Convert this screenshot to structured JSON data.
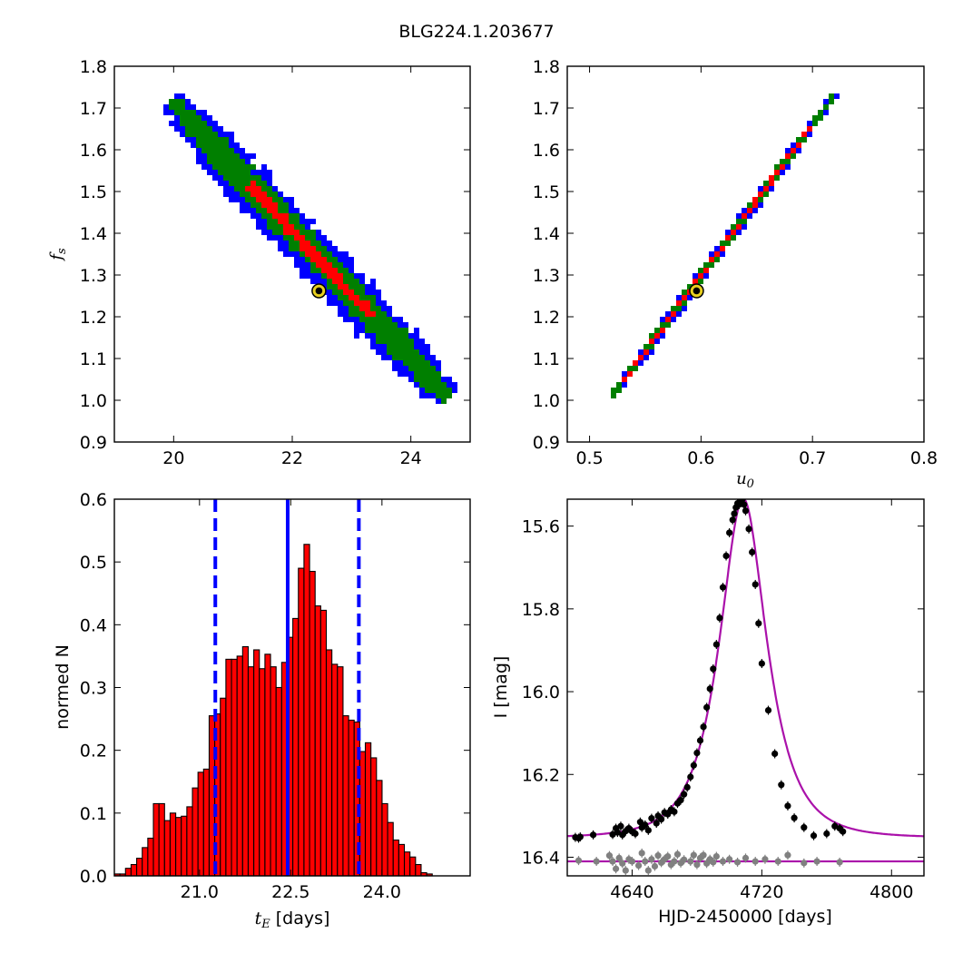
{
  "figure": {
    "title": "BLG224.1.203677"
  },
  "chart_data": [
    {
      "id": "ul",
      "type": "heatmap",
      "title": "",
      "xlabel": "",
      "ylabel": "f_s",
      "ylabel_main": "f",
      "ylabel_sub": "s",
      "xlim": [
        19,
        25
      ],
      "ylim": [
        0.9,
        1.8
      ],
      "xticks": [
        20,
        22,
        24
      ],
      "xtick_labels": [
        "20",
        "22",
        "24"
      ],
      "yticks": [
        0.9,
        1.0,
        1.1,
        1.2,
        1.3,
        1.4,
        1.5,
        1.6,
        1.7,
        1.8
      ],
      "ytick_labels": [
        "0.9",
        "1.0",
        "1.1",
        "1.2",
        "1.3",
        "1.4",
        "1.5",
        "1.6",
        "1.7",
        "1.8"
      ],
      "band": {
        "start": [
          20.0,
          1.71
        ],
        "end": [
          24.6,
          1.01
        ]
      },
      "regions": [
        {
          "level": "3-sigma",
          "color": "#0000ff",
          "half_width": 0.5
        },
        {
          "level": "2-sigma",
          "color": "#007f00",
          "half_width": 0.3
        },
        {
          "level": "1-sigma",
          "color": "#ff0000",
          "half_width": 0.12,
          "from": 0.28,
          "to": 0.73
        }
      ],
      "best_fit": {
        "x": 22.45,
        "y": 1.262
      },
      "grid": false
    },
    {
      "id": "ur",
      "type": "heatmap",
      "title": "",
      "xlabel": "u_0",
      "xlabel_main": "u",
      "xlabel_sub": "0",
      "ylabel": "",
      "xlim": [
        0.48,
        0.8
      ],
      "ylim": [
        0.9,
        1.8
      ],
      "xticks": [
        0.5,
        0.6,
        0.7,
        0.8
      ],
      "xtick_labels": [
        "0.5",
        "0.6",
        "0.7",
        "0.8"
      ],
      "yticks": [
        0.9,
        1.0,
        1.1,
        1.2,
        1.3,
        1.4,
        1.5,
        1.6,
        1.7,
        1.8
      ],
      "ytick_labels": [
        "0.9",
        "1.0",
        "1.1",
        "1.2",
        "1.3",
        "1.4",
        "1.5",
        "1.6",
        "1.7",
        "1.8"
      ],
      "band": {
        "start": [
          0.519,
          1.005
        ],
        "end": [
          0.718,
          1.725
        ]
      },
      "regions": [
        {
          "level": "3-sigma",
          "color": "#0000ff",
          "half_width": 0.006
        },
        {
          "level": "2-sigma",
          "color": "#007f00",
          "half_width": 0.004
        },
        {
          "level": "1-sigma",
          "color": "#ff0000",
          "half_width": 0.0018,
          "from": 0.05,
          "to": 0.9
        }
      ],
      "best_fit": {
        "x": 0.596,
        "y": 1.262
      },
      "grid": false
    },
    {
      "id": "ll",
      "type": "bar",
      "title": "",
      "xlabel": "t_E [days]",
      "xlabel_main": "t",
      "xlabel_sub": "E",
      "xlabel_rest": " [days]",
      "ylabel": "normed N",
      "xlim": [
        19.6,
        25.45
      ],
      "ylim": [
        0.0,
        0.6
      ],
      "xticks": [
        21.0,
        22.5,
        24.0
      ],
      "xtick_labels": [
        "21.0",
        "22.5",
        "24.0"
      ],
      "yticks": [
        0.0,
        0.1,
        0.2,
        0.3,
        0.4,
        0.5,
        0.6
      ],
      "ytick_labels": [
        "0.0",
        "0.1",
        "0.2",
        "0.3",
        "0.4",
        "0.5",
        "0.6"
      ],
      "bin_start": 19.6,
      "bin_width": 0.0917,
      "values": [
        0.003,
        0.003,
        0.012,
        0.018,
        0.028,
        0.045,
        0.06,
        0.115,
        0.115,
        0.088,
        0.1,
        0.093,
        0.095,
        0.11,
        0.14,
        0.165,
        0.17,
        0.255,
        0.258,
        0.283,
        0.345,
        0.345,
        0.35,
        0.365,
        0.333,
        0.36,
        0.33,
        0.353,
        0.333,
        0.3,
        0.34,
        0.38,
        0.41,
        0.49,
        0.528,
        0.485,
        0.43,
        0.423,
        0.36,
        0.337,
        0.333,
        0.255,
        0.248,
        0.245,
        0.198,
        0.212,
        0.188,
        0.152,
        0.115,
        0.085,
        0.057,
        0.05,
        0.038,
        0.03,
        0.018,
        0.005,
        0.003
      ],
      "bar_color": "#ff0000",
      "vlines": [
        {
          "x": 22.45,
          "style": "solid",
          "color": "#0000ff"
        },
        {
          "x": 21.26,
          "style": "dashed",
          "color": "#0000ff"
        },
        {
          "x": 23.62,
          "style": "dashed",
          "color": "#0000ff"
        }
      ],
      "grid": false
    },
    {
      "id": "lr",
      "type": "scatter",
      "title": "",
      "xlabel": "HJD-2450000 [days]",
      "ylabel": "I [mag]",
      "xlim": [
        4600,
        4820
      ],
      "ylim": [
        16.445,
        15.535
      ],
      "y_inverted": true,
      "xticks": [
        4640,
        4720,
        4800
      ],
      "xtick_labels": [
        "4640",
        "4720",
        "4800"
      ],
      "yticks": [
        15.6,
        15.8,
        16.0,
        16.2,
        16.4
      ],
      "ytick_labels": [
        "15.6",
        "15.8",
        "16.0",
        "16.2",
        "16.4"
      ],
      "model": {
        "name": "",
        "color": "#aa11aa",
        "t0": 4708.5,
        "tE": 22.45,
        "u0": 0.596,
        "fs": 1.262,
        "I_base": 16.353
      },
      "series": [
        {
          "name": "",
          "color": "#000000",
          "x": [
            4605,
            4607,
            4608,
            4616,
            4628,
            4630,
            4631,
            4633,
            4634,
            4636,
            4638,
            4640,
            4642,
            4645,
            4646,
            4648,
            4650,
            4652,
            4655,
            4656,
            4658,
            4660,
            4662,
            4664,
            4666,
            4668,
            4670,
            4672,
            4674,
            4676,
            4678,
            4680,
            4682,
            4684,
            4686,
            4688,
            4690,
            4692,
            4694,
            4696,
            4698,
            4700,
            4702,
            4703,
            4704,
            4705,
            4706,
            4707,
            4708,
            4709,
            4710,
            4712,
            4714,
            4716,
            4718,
            4720,
            4724,
            4728,
            4732,
            4736,
            4740,
            4746,
            4752,
            4760,
            4765,
            4768,
            4770
          ],
          "y": [
            16.352,
            16.354,
            16.351,
            16.346,
            16.345,
            16.33,
            16.34,
            16.325,
            16.346,
            16.337,
            16.33,
            16.338,
            16.343,
            16.315,
            16.328,
            16.322,
            16.335,
            16.306,
            16.318,
            16.3,
            16.308,
            16.292,
            16.296,
            16.285,
            16.29,
            16.27,
            16.262,
            16.248,
            16.231,
            16.206,
            16.178,
            16.148,
            16.118,
            16.085,
            16.038,
            15.993,
            15.945,
            15.886,
            15.822,
            15.748,
            15.672,
            15.616,
            15.585,
            15.57,
            15.555,
            15.545,
            15.548,
            15.538,
            15.535,
            15.548,
            15.563,
            15.607,
            15.663,
            15.741,
            15.835,
            15.932,
            16.045,
            16.15,
            16.225,
            16.276,
            16.305,
            16.328,
            16.348,
            16.343,
            16.325,
            16.33,
            16.338
          ]
        },
        {
          "name": "",
          "color": "#808080",
          "x": [
            4607,
            4618,
            4626,
            4628,
            4630,
            4632,
            4634,
            4636,
            4638,
            4640,
            4644,
            4646,
            4648,
            4650,
            4652,
            4654,
            4656,
            4658,
            4660,
            4662,
            4664,
            4666,
            4668,
            4670,
            4672,
            4676,
            4678,
            4680,
            4682,
            4684,
            4686,
            4688,
            4690,
            4692,
            4696,
            4700,
            4705,
            4710,
            4716,
            4722,
            4730,
            4736,
            4746,
            4754,
            4768
          ],
          "y": [
            16.408,
            16.41,
            16.396,
            16.41,
            16.428,
            16.402,
            16.415,
            16.432,
            16.405,
            16.41,
            16.42,
            16.39,
            16.41,
            16.432,
            16.405,
            16.422,
            16.396,
            16.413,
            16.405,
            16.398,
            16.418,
            16.41,
            16.393,
            16.414,
            16.406,
            16.41,
            16.395,
            16.418,
            16.402,
            16.395,
            16.415,
            16.405,
            16.412,
            16.398,
            16.41,
            16.405,
            16.412,
            16.402,
            16.41,
            16.405,
            16.41,
            16.395,
            16.414,
            16.41,
            16.412
          ]
        }
      ],
      "residual_line": {
        "y": 16.41,
        "color": "#aa11aa"
      },
      "grid": false
    }
  ]
}
